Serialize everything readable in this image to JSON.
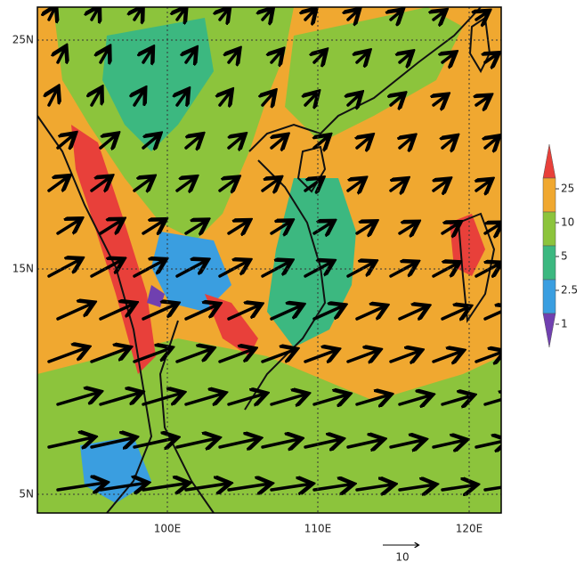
{
  "map": {
    "lat_labels": [
      "25N",
      "15N",
      "5N"
    ],
    "lon_labels": [
      "100E",
      "110E",
      "120E"
    ],
    "colorbar": {
      "ticks": [
        25,
        10,
        5,
        2.5,
        1
      ],
      "colors": [
        "#e8403a",
        "#f0a830",
        "#8cc43c",
        "#3cb880",
        "#3a9ee0",
        "#7040b0"
      ]
    },
    "reference_vector": {
      "label": 10
    }
  }
}
